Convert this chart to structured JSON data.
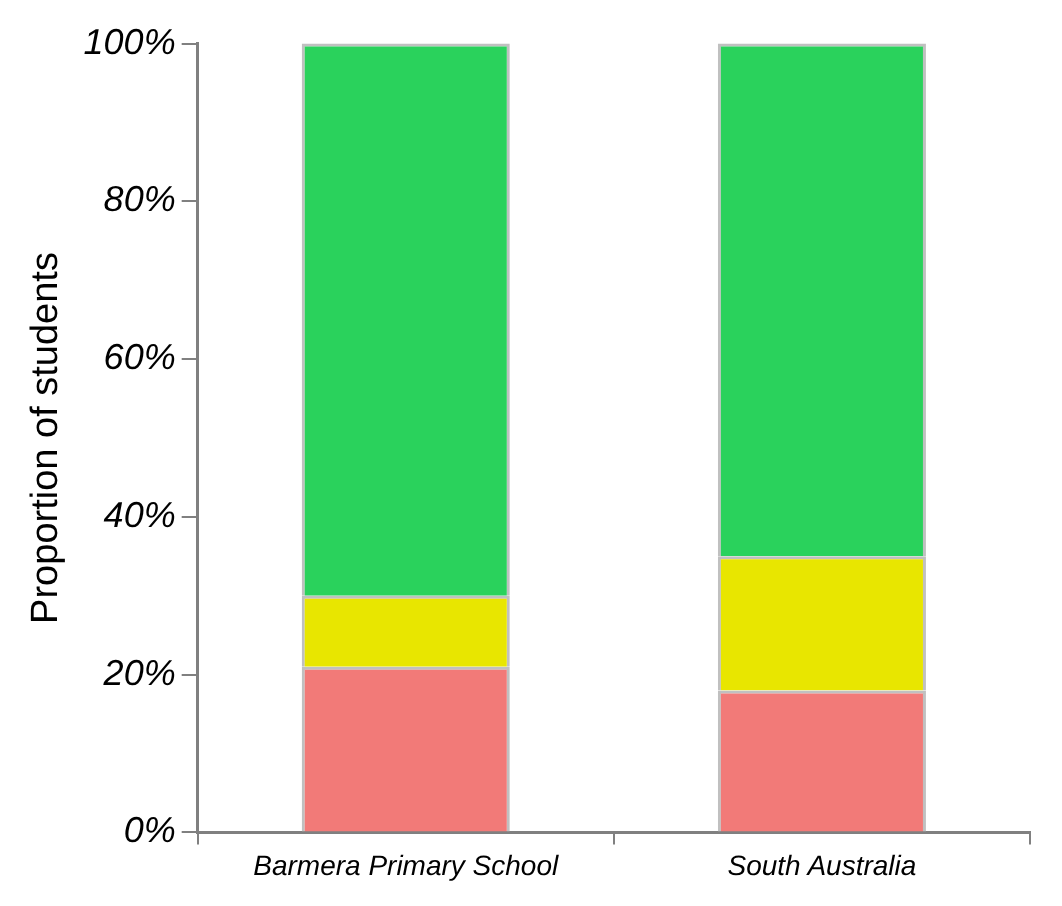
{
  "chart_data": {
    "type": "bar",
    "stacked": true,
    "ylabel": "Proportion of students",
    "categories": [
      "Barmera Primary School",
      "South Australia"
    ],
    "series": [
      {
        "color": "#f27a78",
        "values": [
          21,
          18
        ]
      },
      {
        "color": "#e8e600",
        "values": [
          9,
          17
        ]
      },
      {
        "color": "#2ad25c",
        "values": [
          70,
          65
        ]
      }
    ],
    "ylim": [
      0,
      100
    ],
    "yticks": [
      {
        "value": 0,
        "label": "0%"
      },
      {
        "value": 20,
        "label": "20%"
      },
      {
        "value": 40,
        "label": "40%"
      },
      {
        "value": 60,
        "label": "60%"
      },
      {
        "value": 80,
        "label": "80%"
      },
      {
        "value": 100,
        "label": "100%"
      }
    ],
    "grid": false,
    "legend": false
  }
}
